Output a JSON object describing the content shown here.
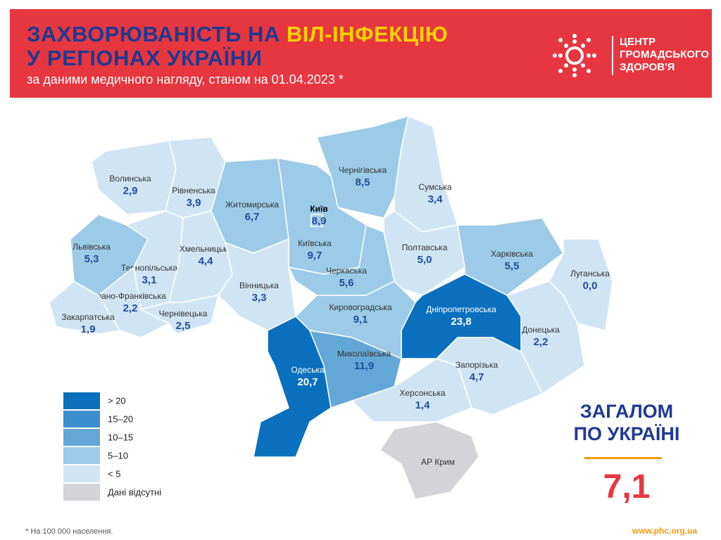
{
  "header": {
    "title_line1": "ЗАХВОРЮВАНІСТЬ НА ",
    "title_highlight": "ВІЛ-ІНФЕКЦІЮ",
    "title_line2": "У РЕГІОНАХ УКРАЇНИ",
    "subtitle": "за даними медичного нагляду, станом на 01.04.2023 *",
    "logo": [
      "ЦЕНТР",
      "ГРОМАДСЬКОГО",
      "ЗДОРОВ'Я"
    ]
  },
  "regions": [
    {
      "name": "Волинська",
      "value": "2,9",
      "color": "#d0e5f4"
    },
    {
      "name": "Рівненська",
      "value": "3,9",
      "color": "#d0e5f4"
    },
    {
      "name": "Житомирська",
      "value": "6,7",
      "color": "#9ccbe8"
    },
    {
      "name": "Чернігівська",
      "value": "8,5",
      "color": "#9ccbe8"
    },
    {
      "name": "Сумська",
      "value": "3,4",
      "color": "#d0e5f4"
    },
    {
      "name": "Київська",
      "value": "9,7",
      "color": "#9ccbe8"
    },
    {
      "name": "Львівська",
      "value": "5,3",
      "color": "#9ccbe8"
    },
    {
      "name": "Тернопільська",
      "value": "3,1",
      "color": "#d0e5f4"
    },
    {
      "name": "Хмельницька",
      "value": "4,4",
      "color": "#d0e5f4"
    },
    {
      "name": "Вінницька",
      "value": "3,3",
      "color": "#d0e5f4"
    },
    {
      "name": "Черкаська",
      "value": "5,6",
      "color": "#9ccbe8"
    },
    {
      "name": "Полтавська",
      "value": "5,0",
      "color": "#d0e5f4"
    },
    {
      "name": "Харківська",
      "value": "5,5",
      "color": "#9ccbe8"
    },
    {
      "name": "Луганська",
      "value": "0,0",
      "color": "#d0e5f4"
    },
    {
      "name": "Донецька",
      "value": "2,2",
      "color": "#d0e5f4"
    },
    {
      "name": "Дніпропетровська",
      "value": "23,8",
      "color": "#0a70be"
    },
    {
      "name": "Кировоградська",
      "value": "9,1",
      "color": "#9ccbe8"
    },
    {
      "name": "Івано-Франківська",
      "value": "2,2",
      "color": "#d0e5f4"
    },
    {
      "name": "Закарпатська",
      "value": "1,9",
      "color": "#d0e5f4"
    },
    {
      "name": "Чернівецька",
      "value": "2,5",
      "color": "#d0e5f4"
    },
    {
      "name": "Одеська",
      "value": "20,7",
      "color": "#0a70be"
    },
    {
      "name": "Миколаївська",
      "value": "11,9",
      "color": "#63a7d6"
    },
    {
      "name": "Херсонська",
      "value": "1,4",
      "color": "#d0e5f4"
    },
    {
      "name": "Запорізька",
      "value": "4,7",
      "color": "#d0e5f4"
    },
    {
      "name": "Київ",
      "value": "8,9",
      "color": "#9ccbe8"
    },
    {
      "name": "АР Крим",
      "color": "#d4d4d8"
    }
  ],
  "legend": [
    {
      "label": "> 20",
      "color": "#0a70be"
    },
    {
      "label": "15–20",
      "color": "#3b8fce"
    },
    {
      "label": "10–15",
      "color": "#63a7d6"
    },
    {
      "label": "5–10",
      "color": "#9ccbe8"
    },
    {
      "label": "< 5",
      "color": "#d0e5f4"
    },
    {
      "label": "Дані відсутні",
      "color": "#d4d4d8"
    }
  ],
  "total": {
    "line1": "ЗАГАЛОМ",
    "line2": "ПО УКРАЇНІ",
    "value": "7,1"
  },
  "footnote": "* На 100 000 населення.",
  "website": "www.phc.org.ua"
}
